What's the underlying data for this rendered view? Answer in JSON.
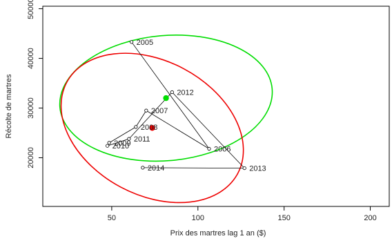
{
  "chart_data": {
    "type": "scatter",
    "title": "",
    "xlabel": "Prix des martres lag 1 an ($)",
    "ylabel": "Récolte de martres",
    "xlim": [
      10,
      211
    ],
    "ylim": [
      10200,
      50500
    ],
    "xticks": [
      50,
      100,
      150,
      200
    ],
    "yticks": [
      20000,
      30000,
      40000,
      50000
    ],
    "xtick_labels": [
      "50",
      "100",
      "150",
      "200"
    ],
    "ytick_labels": [
      "20000",
      "30000",
      "40000",
      "50000"
    ],
    "points": [
      {
        "year": "2005",
        "x": 61.5,
        "y": 43300
      },
      {
        "year": "2006",
        "x": 106.5,
        "y": 21800
      },
      {
        "year": "2007",
        "x": 70,
        "y": 29500
      },
      {
        "year": "2008",
        "x": 64,
        "y": 26200
      },
      {
        "year": "2009",
        "x": 48.5,
        "y": 23000
      },
      {
        "year": "2010",
        "x": 47.5,
        "y": 22400
      },
      {
        "year": "2011",
        "x": 60,
        "y": 23800
      },
      {
        "year": "2012",
        "x": 85,
        "y": 33200
      },
      {
        "year": "2013",
        "x": 127,
        "y": 17900
      },
      {
        "year": "2014",
        "x": 68,
        "y": 18000
      }
    ],
    "path_order": [
      "2005",
      "2006",
      "2007",
      "2008",
      "2009",
      "2010",
      "2011",
      "2012",
      "2013",
      "2014"
    ],
    "centers": [
      {
        "name": "green",
        "x": 81.5,
        "y": 32000,
        "color": "#00dd00"
      },
      {
        "name": "red",
        "x": 73.5,
        "y": 26000,
        "color": "#ee0000"
      }
    ],
    "ellipses": [
      {
        "name": "green",
        "center": [
          81.5,
          32000
        ],
        "rx": 61.8,
        "ry": 12600,
        "rotate_deg": -5,
        "color": "#00dd00"
      },
      {
        "name": "red",
        "center": [
          73.5,
          26000
        ],
        "rx": 56.2,
        "ry": 13500,
        "rotate_deg": 28,
        "color": "#ee0000"
      }
    ],
    "grid": false
  }
}
